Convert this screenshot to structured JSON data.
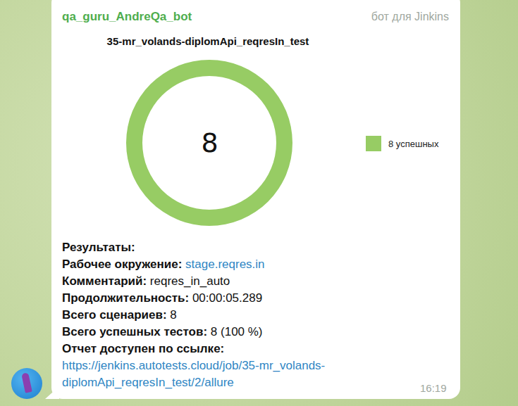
{
  "message": {
    "sender": "qa_guru_AndreQa_bot",
    "sender_note": "бот для Jinkins",
    "lines": [
      {
        "label": "Результаты:"
      },
      {
        "label": "Рабочее окружение:",
        "link": "stage.reqres.in"
      },
      {
        "label": "Комментарий:",
        "text": "reqres_in_auto"
      },
      {
        "label": "Продолжительность:",
        "text": "00:00:05.289"
      },
      {
        "label": "Всего сценариев:",
        "text": "8"
      },
      {
        "label": "Всего успешных тестов:",
        "text": "8 (100 %)"
      },
      {
        "label": "Отчет доступен по ссылке:"
      },
      {
        "link": "https://jenkins.autotests.cloud/job/35-mr_volands-diplomApi_reqresIn_test/2/allure"
      }
    ],
    "time": "16:19"
  },
  "chart_data": {
    "type": "donut",
    "title": "35-mr_volands-diplomApi_reqresIn_test",
    "categories": [
      "8 успешных"
    ],
    "values": [
      8
    ],
    "colors": [
      "#97cc64"
    ],
    "data_labels": true,
    "legend": "right"
  }
}
